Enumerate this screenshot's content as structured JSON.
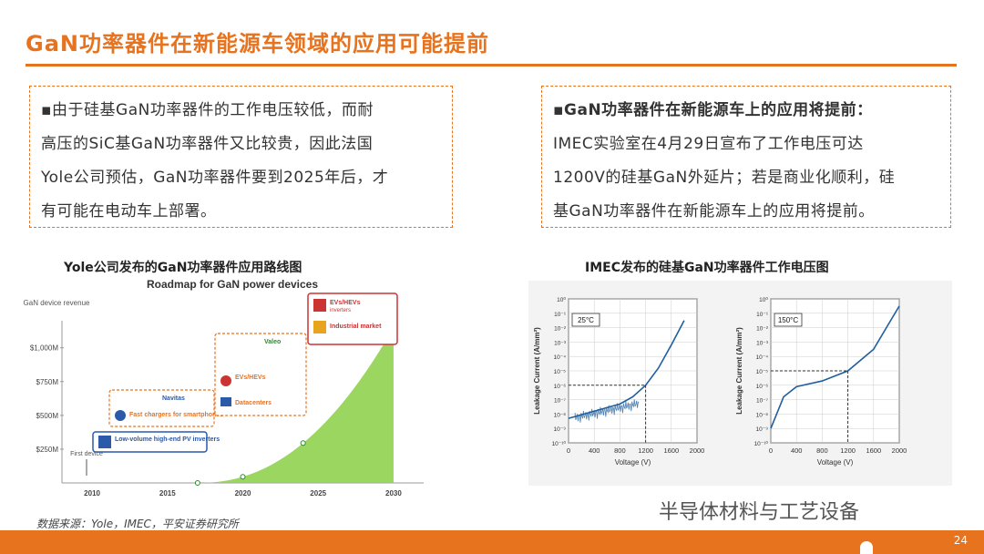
{
  "slide": {
    "title": "GaN功率器件在新能源车领域的应用可能提前",
    "page_number": "24",
    "source": "数据来源：Yole，IMEC，平安证券研究所",
    "watermark": "半导体材料与工艺设备"
  },
  "left_box": {
    "lead": "▪由于硅基GaN功率器件的工作电压较低，而耐",
    "lines": [
      "高压的SiC基GaN功率器件又比较贵，因此法国",
      "Yole公司预估，GaN功率器件要到2025年后，才",
      "有可能在电动车上部署。"
    ]
  },
  "right_box": {
    "lead": "▪GaN功率器件在新能源车上的应用将提前：",
    "lines": [
      "IMEC实验室在4月29日宣布了工作电压可达",
      "1200V的硅基GaN外延片；若是商业化顺利，硅",
      "基GaN功率器件在新能源车上的应用将提前。"
    ]
  },
  "left_figure": {
    "caption": "Yole公司发布的GaN功率器件应用路线图",
    "heading": "Roadmap for GaN power devices",
    "ylabel": "GaN device revenue",
    "first_device": "First device",
    "boxes": {
      "pv": "Low-volume high-end PV inverters",
      "chargers": "Fast chargers for smartphones",
      "datacenters": "Datacenters",
      "evs_mid": "EVs/HEVs",
      "evs": "EVs/HEVs",
      "evs_sub": "inverters",
      "industrial": "Industrial market",
      "navitas": "Navitas",
      "valeo": "Valeo"
    },
    "accent": "#8fd14f"
  },
  "right_figure": {
    "caption": "IMEC发布的硅基GaN功率器件工作电压图",
    "panels": [
      {
        "temp": "25°C"
      },
      {
        "temp": "150°C"
      }
    ],
    "ylabel": "Leakage Current (A/mm²)",
    "xlabel": "Voltage (V)",
    "curve_color": "#1f5f9e"
  },
  "chart_data": [
    {
      "type": "area",
      "title": "Roadmap for GaN power devices",
      "ylabel": "GaN device revenue",
      "categories": [
        "2010",
        "2015",
        "2020",
        "2025",
        "2030"
      ],
      "y_ticks": [
        "$250M",
        "$500M",
        "$750M",
        "$1,000M"
      ],
      "x": [
        2017,
        2020,
        2025,
        2030
      ],
      "values": [
        0,
        50,
        350,
        1150
      ]
    },
    {
      "type": "line",
      "title": "25°C",
      "xlabel": "Voltage (V)",
      "ylabel": "Leakage Current (A/mm²)",
      "x_ticks": [
        "0",
        "400",
        "800",
        "1200",
        "1600",
        "2000"
      ],
      "y_ticks": [
        "10⁻¹⁰",
        "10⁻⁹",
        "10⁻⁸",
        "10⁻⁷",
        "10⁻⁶",
        "10⁻⁵",
        "10⁻⁴",
        "10⁻³",
        "10⁻²",
        "10⁻¹",
        "10⁰"
      ],
      "xlim": [
        0,
        2000
      ],
      "ylim_exp": [
        -10,
        0
      ],
      "x": [
        0,
        400,
        800,
        1000,
        1200,
        1400,
        1600,
        1800
      ],
      "values_exp": [
        -8.3,
        -7.8,
        -7.3,
        -6.8,
        -6.0,
        -4.8,
        -3.2,
        -1.5
      ],
      "reference": {
        "x": 1200,
        "y_exp": -6
      }
    },
    {
      "type": "line",
      "title": "150°C",
      "xlabel": "Voltage (V)",
      "ylabel": "Leakage Current (A/mm²)",
      "x_ticks": [
        "0",
        "400",
        "800",
        "1200",
        "1600",
        "2000"
      ],
      "y_ticks": [
        "10⁻¹⁰",
        "10⁻⁹",
        "10⁻⁸",
        "10⁻⁷",
        "10⁻⁶",
        "10⁻⁵",
        "10⁻⁴",
        "10⁻³",
        "10⁻²",
        "10⁻¹",
        "10⁰"
      ],
      "xlim": [
        0,
        2000
      ],
      "ylim_exp": [
        -10,
        0
      ],
      "x": [
        0,
        200,
        400,
        800,
        1200,
        1600,
        2000
      ],
      "values_exp": [
        -9.0,
        -6.8,
        -6.1,
        -5.7,
        -5.0,
        -3.5,
        -0.5
      ],
      "reference": {
        "x": 1200,
        "y_exp": -5
      }
    }
  ]
}
